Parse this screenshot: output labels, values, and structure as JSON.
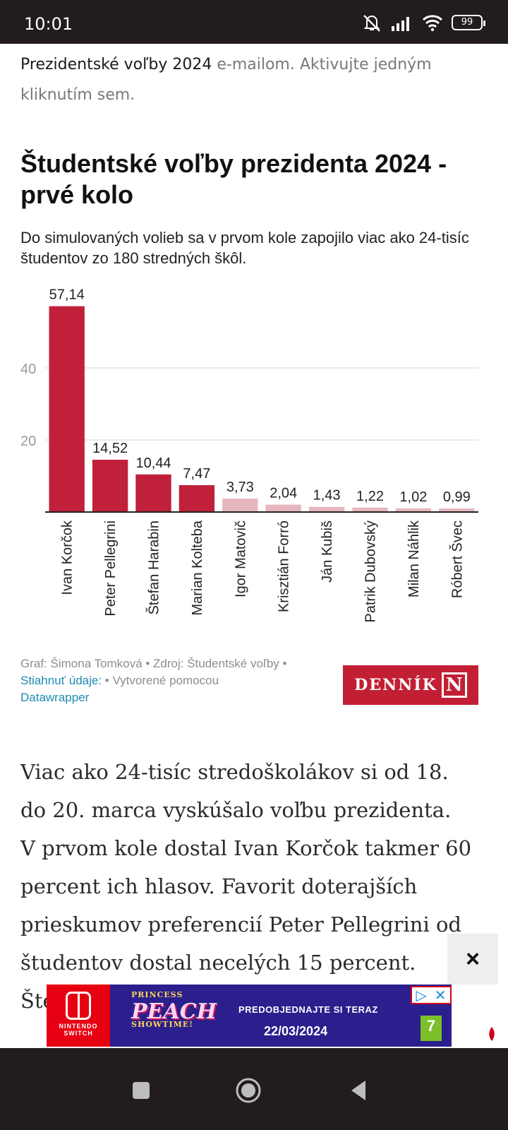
{
  "status_bar": {
    "time": "10:01",
    "battery": "99"
  },
  "promo": {
    "bold": "Prezidentské voľby 2024",
    "rest": " e-mailom. Aktivujte jedným kliknutím sem."
  },
  "chart_title": "Študentské voľby prezidenta 2024 - prvé kolo",
  "chart_description": "Do simulovaných volieb sa v prvom kole zapojilo viac ako 24-tisíc študentov zo 180 stredných škôl.",
  "chart_data": {
    "type": "bar",
    "categories": [
      "Ivan Korčok",
      "Peter Pellegrini",
      "Štefan Harabin",
      "Marian Kolteba",
      "Igor Matovič",
      "Krisztián Forró",
      "Ján Kubiš",
      "Patrik Dubovský",
      "Milan Náhlik",
      "Róbert Švec"
    ],
    "values": [
      57.14,
      14.52,
      10.44,
      7.47,
      3.73,
      2.04,
      1.43,
      1.22,
      1.02,
      0.99
    ],
    "value_labels": [
      "57,14",
      "14,52",
      "10,44",
      "7,47",
      "3,73",
      "2,04",
      "1,43",
      "1,22",
      "1,02",
      "0,99"
    ],
    "yticks": [
      20,
      40
    ],
    "ylim": [
      0,
      60
    ],
    "grid": true,
    "colors": [
      "#c0203a",
      "#c0203a",
      "#c0203a",
      "#c0203a",
      "#e6b6be",
      "#e6b6be",
      "#e6b6be",
      "#e6b6be",
      "#e6b6be",
      "#e6b6be"
    ]
  },
  "credits": {
    "graph_by": "Graf: Šimona Tomková • Zdroj: Študentské voľby •",
    "download": "Stiahnuť údaje:",
    "made_with": " • Vytvorené pomocou",
    "datawrapper": "Datawrapper"
  },
  "logo": {
    "text": "DENNÍK",
    "letter": "N"
  },
  "article": {
    "p1": "Viac ako 24-tisíc stredoškolákov si od 18. do 20. marca vyskúšalo voľbu prezidenta.",
    "p2": "V prvom kole dostal Ivan Korčok takmer 60 percent ich hlasov. Favorit doterajších prieskumov preferencií Peter Pellegrini od študentov dostal necelých 15 percent. Štefan"
  },
  "close_ad": "×",
  "ad": {
    "brand_line1": "NINTENDO",
    "brand_line2": "SWITCH",
    "title": "PEACH",
    "title_top": "PRINCESS",
    "title_sub": "SHOWTIME!",
    "cta": "PREDOBJEDNAJTE SI TERAZ",
    "date": "22/03/2024",
    "rating": "7",
    "choices_x": "✕"
  }
}
